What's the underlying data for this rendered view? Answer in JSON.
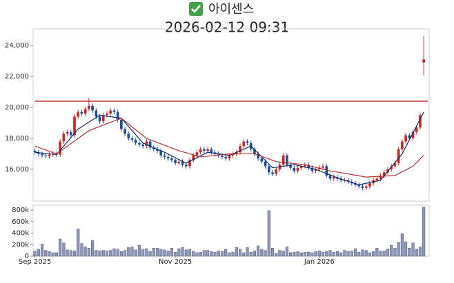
{
  "chart_data": [
    {
      "type": "candlestick",
      "title": "아이센스",
      "subtitle": "2026-02-12 09:31",
      "up_color": "#c62828",
      "down_color": "#1f4e99",
      "xlim": [
        -0.5,
        109.5
      ],
      "ylim": [
        13950,
        25070
      ],
      "yticks": [
        {
          "value": 16000,
          "label": "16,000"
        },
        {
          "value": 18000,
          "label": "18,000"
        },
        {
          "value": 20000,
          "label": "20,000"
        },
        {
          "value": 22000,
          "label": "22,000"
        },
        {
          "value": 24000,
          "label": "24,000"
        }
      ],
      "open": [
        17200,
        17100,
        17000,
        16900,
        16850,
        16950,
        17000,
        16950,
        17800,
        18300,
        18400,
        18200,
        19400,
        19700,
        19600,
        19900,
        20100,
        19800,
        19400,
        19100,
        19500,
        19600,
        19800,
        19700,
        19200,
        18600,
        18300,
        18000,
        17900,
        17700,
        17600,
        17500,
        17800,
        17400,
        17300,
        17200,
        16900,
        16800,
        16700,
        16600,
        16400,
        16500,
        16300,
        16200,
        16600,
        16900,
        17100,
        17300,
        17200,
        17300,
        17100,
        17000,
        16900,
        16800,
        16700,
        16900,
        17000,
        17100,
        17500,
        17800,
        17700,
        17300,
        17000,
        16700,
        16500,
        16200,
        15800,
        15700,
        16000,
        16300,
        16900,
        16300,
        16100,
        15900,
        16100,
        16200,
        16300,
        16100,
        15900,
        16000,
        16100,
        16200,
        15600,
        15400,
        15500,
        15400,
        15300,
        15300,
        15200,
        15100,
        15000,
        14900,
        14800,
        14900,
        15100,
        15300,
        15400,
        15600,
        15800,
        16000,
        16200,
        16400,
        17300,
        17800,
        18200,
        18000,
        18400,
        18700,
        22900
      ],
      "high": [
        17350,
        17250,
        17150,
        17050,
        17100,
        17150,
        17150,
        17950,
        18450,
        18550,
        18550,
        19550,
        19850,
        19850,
        20050,
        20600,
        20250,
        19950,
        19550,
        19650,
        19750,
        19950,
        19950,
        19850,
        19350,
        18750,
        18450,
        18150,
        18050,
        17850,
        17750,
        17950,
        17950,
        17550,
        17450,
        17350,
        17050,
        16950,
        16850,
        16750,
        16650,
        16650,
        16450,
        16750,
        17050,
        17250,
        17450,
        17450,
        17450,
        17450,
        17250,
        17150,
        17050,
        16950,
        17050,
        17150,
        17250,
        17650,
        17950,
        17950,
        17850,
        17450,
        17150,
        16850,
        16650,
        16350,
        15950,
        16150,
        16450,
        17050,
        17050,
        16450,
        16250,
        16250,
        16350,
        16450,
        16450,
        16250,
        16150,
        16250,
        16350,
        16350,
        15750,
        15650,
        15650,
        15550,
        15450,
        15450,
        15350,
        15250,
        15150,
        15050,
        15050,
        15250,
        15450,
        15550,
        15750,
        15950,
        16150,
        16350,
        16550,
        17450,
        17950,
        18350,
        18350,
        18550,
        18850,
        19650,
        24600
      ],
      "low": [
        16950,
        16850,
        16750,
        16700,
        16700,
        16800,
        16800,
        16800,
        17650,
        18150,
        18050,
        18050,
        19250,
        19450,
        19450,
        19750,
        19650,
        19250,
        18950,
        18950,
        19350,
        19450,
        19550,
        19050,
        18450,
        18150,
        17850,
        17750,
        17550,
        17450,
        17350,
        17350,
        17250,
        17150,
        17050,
        16750,
        16650,
        16550,
        16450,
        16250,
        16250,
        16150,
        16050,
        16050,
        16450,
        16750,
        16950,
        17050,
        17050,
        16950,
        16850,
        16750,
        16650,
        16550,
        16550,
        16750,
        16850,
        16950,
        17350,
        17550,
        17150,
        16850,
        16550,
        16350,
        16050,
        15650,
        15550,
        15550,
        15850,
        16150,
        16150,
        15950,
        15750,
        15750,
        15950,
        16050,
        15950,
        15750,
        15750,
        15850,
        15950,
        15450,
        15250,
        15250,
        15250,
        15150,
        15150,
        15050,
        14950,
        14850,
        14750,
        14650,
        14650,
        14750,
        14950,
        15150,
        15250,
        15450,
        15650,
        15850,
        16050,
        16250,
        17150,
        17650,
        17850,
        17850,
        18250,
        18550,
        22100
      ],
      "close": [
        17100,
        17000,
        16900,
        16850,
        16950,
        17000,
        16950,
        17800,
        18300,
        18400,
        18200,
        19400,
        19700,
        19600,
        19900,
        20100,
        19800,
        19400,
        19100,
        19500,
        19600,
        19800,
        19700,
        19200,
        18600,
        18300,
        18000,
        17900,
        17700,
        17600,
        17500,
        17800,
        17400,
        17300,
        17200,
        16900,
        16800,
        16700,
        16600,
        16400,
        16500,
        16300,
        16200,
        16600,
        16900,
        17100,
        17300,
        17200,
        17300,
        17100,
        17000,
        16900,
        16800,
        16700,
        16900,
        17000,
        17100,
        17500,
        17800,
        17700,
        17300,
        17000,
        16700,
        16500,
        16200,
        15800,
        15700,
        16000,
        16300,
        16900,
        16300,
        16100,
        15900,
        16100,
        16200,
        16300,
        16100,
        15900,
        16000,
        16100,
        16200,
        15600,
        15400,
        15500,
        15400,
        15300,
        15300,
        15200,
        15100,
        15000,
        14900,
        14800,
        14900,
        15100,
        15300,
        15400,
        15600,
        15800,
        16000,
        16200,
        16400,
        17300,
        17800,
        18200,
        18000,
        18400,
        18700,
        19500,
        23100
      ],
      "lines": [
        {
          "color": "#0d2b6b",
          "x": [
            0,
            6,
            12,
            18,
            24,
            30,
            36,
            42,
            48,
            54,
            60,
            66,
            72,
            78,
            84,
            90,
            96,
            102,
            108
          ],
          "values": [
            17100,
            16950,
            18600,
            19500,
            19300,
            17700,
            17100,
            16400,
            17100,
            16900,
            17500,
            16100,
            16300,
            16000,
            15450,
            15000,
            15300,
            17000,
            19700
          ]
        },
        {
          "color": "#b03030",
          "x": [
            0,
            6,
            15,
            24,
            31,
            40,
            46,
            54,
            61,
            67,
            75,
            82,
            92,
            100,
            105,
            108
          ],
          "values": [
            17500,
            17000,
            18500,
            19300,
            18000,
            17200,
            16800,
            17000,
            17000,
            16500,
            16300,
            15900,
            15500,
            15600,
            16200,
            16900
          ]
        }
      ],
      "hlines": [
        {
          "value": 20400,
          "color": "#c62828"
        }
      ]
    },
    {
      "type": "bar",
      "color": "#8f98b8",
      "xlim": [
        -0.5,
        109.5
      ],
      "ylim": [
        0,
        886000
      ],
      "yticks": [
        0,
        {
          "value": 200000,
          "label": "200k"
        },
        {
          "value": 400000,
          "label": "400k"
        },
        {
          "value": 600000,
          "label": "600k"
        },
        {
          "value": 800000,
          "label": "800k"
        }
      ],
      "xticks": [
        {
          "value": 0,
          "label": "Sep 2025"
        },
        {
          "value": 39,
          "label": "Nov 2025"
        },
        {
          "value": 79,
          "label": "Jan 2026"
        }
      ],
      "values": [
        90000,
        120000,
        210000,
        100000,
        80000,
        60000,
        60000,
        300000,
        230000,
        110000,
        100000,
        90000,
        470000,
        220000,
        160000,
        140000,
        270000,
        100000,
        90000,
        100000,
        90000,
        100000,
        130000,
        120000,
        80000,
        100000,
        150000,
        160000,
        110000,
        190000,
        120000,
        130000,
        80000,
        140000,
        140000,
        120000,
        110000,
        90000,
        140000,
        70000,
        130000,
        150000,
        110000,
        120000,
        80000,
        60000,
        70000,
        100000,
        100000,
        80000,
        70000,
        90000,
        80000,
        120000,
        60000,
        70000,
        150000,
        120000,
        60000,
        150000,
        70000,
        90000,
        180000,
        120000,
        100000,
        790000,
        140000,
        50000,
        100000,
        90000,
        160000,
        60000,
        70000,
        80000,
        60000,
        70000,
        70000,
        60000,
        80000,
        90000,
        70000,
        80000,
        100000,
        70000,
        80000,
        60000,
        100000,
        80000,
        90000,
        130000,
        70000,
        110000,
        100000,
        60000,
        80000,
        140000,
        90000,
        90000,
        120000,
        190000,
        140000,
        240000,
        390000,
        250000,
        140000,
        230000,
        120000,
        160000,
        850000
      ]
    }
  ]
}
